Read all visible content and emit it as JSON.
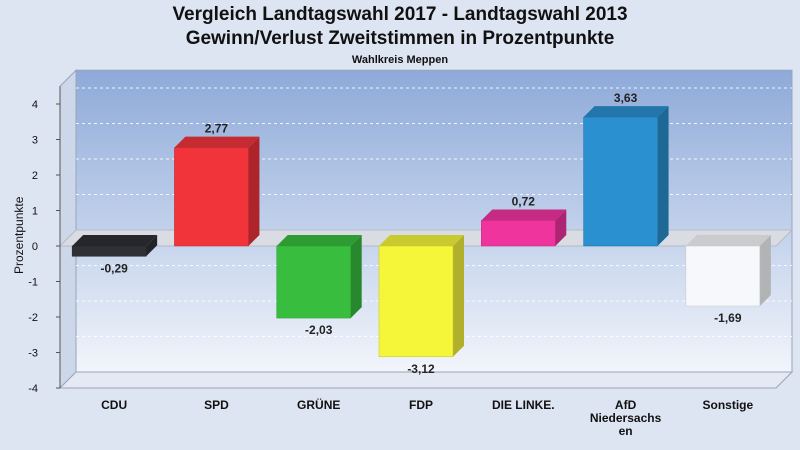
{
  "chart_data": {
    "type": "bar",
    "title": "Vergleich Landtagswahl 2017 - Landtagswahl 2013",
    "subtitle": "Gewinn/Verlust Zweitstimmen in Prozentpunkte",
    "subtitle2": "Wahlkreis Meppen",
    "ylabel": "Prozentpunkte",
    "xlabel": "",
    "ylim": [
      -4,
      4.5
    ],
    "yticks": [
      "4",
      "3",
      "2",
      "1",
      "0",
      "-1",
      "-2",
      "-3",
      "-4"
    ],
    "grid": true,
    "categories": [
      [
        "CDU"
      ],
      [
        "SPD"
      ],
      [
        "GRÜNE"
      ],
      [
        "FDP"
      ],
      [
        "DIE LINKE."
      ],
      [
        "AfD",
        "Niedersachs",
        "en"
      ],
      [
        "Sonstige"
      ]
    ],
    "values": [
      -0.29,
      2.77,
      -2.03,
      -3.12,
      0.72,
      3.63,
      -1.69
    ],
    "value_labels": [
      "-0,29",
      "2,77",
      "-2,03",
      "-3,12",
      "0,72",
      "3,63",
      "-1,69"
    ],
    "colors": [
      "#2e3035",
      "#f0343a",
      "#38bd3e",
      "#f5f53a",
      "#f0349e",
      "#2a90d0",
      "#f7f8fb"
    ]
  }
}
